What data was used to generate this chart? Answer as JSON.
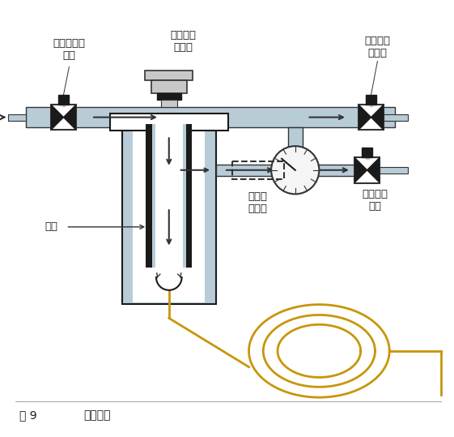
{
  "figure_label": "图 9",
  "figure_caption": "分流模式",
  "labels": {
    "top_left": "进样口流量\n控制",
    "top_center": "隔垫螺母\n和隔垫",
    "top_right": "隔垫吹扫\n气控制",
    "left_mid": "衬管",
    "split_valve": "分流阀\n（开）",
    "split_outlet": "分流出口\n控制"
  },
  "colors": {
    "lb": "#b8ccd8",
    "dk": "#333333",
    "bk": "#1a1a1a",
    "wh": "#ffffff",
    "gold": "#c8960a",
    "gray_septum": "#c8c8c8",
    "gauge_bg": "#f5f5f5",
    "txt": "#1a1a1a",
    "light_line": "#aaaaaa"
  }
}
